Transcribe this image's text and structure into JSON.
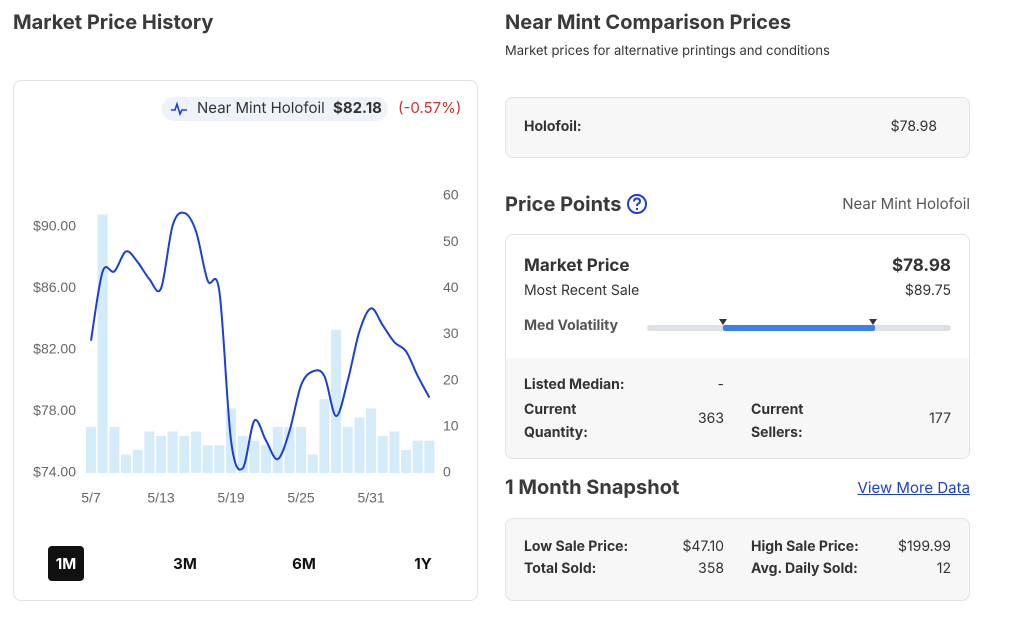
{
  "left": {
    "title": "Market Price History",
    "legend_value": "$82.18",
    "legend_change": "(-0.57%)",
    "ranges": [
      "1M",
      "3M",
      "6M",
      "1Y"
    ]
  },
  "chart_data": {
    "type": "line",
    "categories": [
      "5/7",
      null,
      null,
      null,
      null,
      null,
      "5/13",
      null,
      null,
      null,
      null,
      null,
      "5/19",
      null,
      null,
      null,
      null,
      null,
      "5/25",
      null,
      null,
      null,
      null,
      null,
      "5/31",
      null,
      null,
      null,
      null,
      null
    ],
    "series": [
      {
        "name": "Near Mint Holofoil",
        "color": "#1b3fd6",
        "values": [
          82.6,
          87.1,
          87.1,
          88.4,
          87.7,
          86.6,
          86.0,
          90.1,
          90.9,
          89.7,
          86.5,
          85.8,
          76.1,
          74.3,
          77.4,
          76.1,
          74.9,
          76.7,
          79.7,
          80.6,
          80.3,
          77.7,
          80.0,
          83.2,
          84.7,
          83.6,
          82.5,
          81.9,
          80.3,
          78.9
        ]
      },
      {
        "type": "bar",
        "axis": "y2",
        "color": "#d4ebfa",
        "values": [
          10,
          56,
          10,
          4,
          5,
          9,
          8,
          9,
          8,
          9,
          6,
          6,
          14,
          8,
          7,
          6,
          10,
          10,
          10,
          4,
          16,
          31,
          10,
          12,
          14,
          8,
          9,
          5,
          7,
          7
        ]
      }
    ],
    "ylim": [
      74,
      92
    ],
    "yticks": [
      {
        "value": 74,
        "label": "$74.00"
      },
      {
        "value": 78,
        "label": "$78.00"
      },
      {
        "value": 82,
        "label": "$82.00"
      },
      {
        "value": 86,
        "label": "$86.00"
      },
      {
        "value": 90,
        "label": "$90.00"
      }
    ],
    "y2lim": [
      0,
      60
    ],
    "y2ticks": [
      0,
      10,
      20,
      30,
      40,
      50,
      60
    ]
  },
  "comparison": {
    "title": "Near Mint Comparison Prices",
    "subtitle": "Market prices for alternative printings and conditions",
    "label": "Holofoil:",
    "value": "$78.98"
  },
  "price_points": {
    "title": "Price Points",
    "condition": "Near Mint Holofoil",
    "market_label": "Market Price",
    "market_value": "$78.98",
    "recent_label": "Most Recent Sale",
    "recent_value": "$89.75",
    "volatility": "Med Volatility",
    "median_label": "Listed Median:",
    "median_value": "-",
    "quantity_label": "Current Quantity:",
    "quantity_value": 363,
    "sellers_label": "Current Sellers:",
    "sellers_value": 177
  },
  "snapshot": {
    "title": "1 Month Snapshot",
    "link": "View More Data",
    "low_label": "Low Sale Price:",
    "low_value": "$47.10",
    "high_label": "High Sale Price:",
    "high_value": "$199.99",
    "sold_label": "Total Sold:",
    "sold_value": 358,
    "daily_label": "Avg. Daily Sold:",
    "daily_value": 12
  }
}
